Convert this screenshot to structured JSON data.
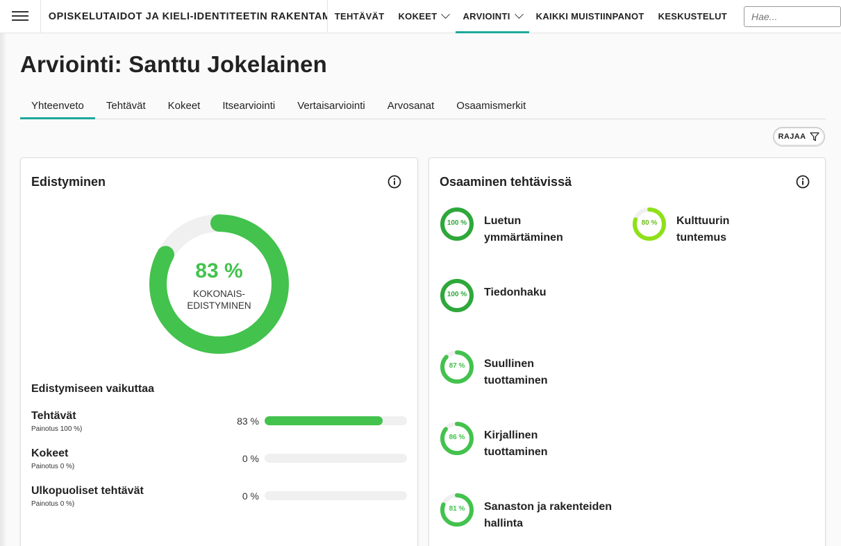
{
  "header": {
    "course_title": "OPISKELUTAIDOT JA KIELI-IDENTITEETIN RAKENTAMIN...",
    "nav": [
      {
        "label": "TEHTÄVÄT"
      },
      {
        "label": "KOKEET"
      },
      {
        "label": "ARVIOINTI"
      },
      {
        "label": "KAIKKI MUISTIINPANOT"
      },
      {
        "label": "KESKUSTELUT"
      }
    ],
    "search_placeholder": "Hae..."
  },
  "page": {
    "title": "Arviointi: Santtu Jokelainen",
    "tabs": [
      {
        "label": "Yhteenveto"
      },
      {
        "label": "Tehtävät"
      },
      {
        "label": "Kokeet"
      },
      {
        "label": "Itsearviointi"
      },
      {
        "label": "Vertaisarviointi"
      },
      {
        "label": "Arvosanat"
      },
      {
        "label": "Osaamismerkit"
      }
    ],
    "filter_label": "RAJAA"
  },
  "progress_card": {
    "title": "Edistyminen",
    "overall_percent": "83 %",
    "overall_value": 83,
    "overall_label_line1": "KOKONAIS-",
    "overall_label_line2": "EDISTYMINEN",
    "contributors_heading": "Edistymiseen vaikuttaa",
    "contributors": [
      {
        "name": "Tehtävät",
        "weight": "Painotus 100 %)",
        "value_label": "83 %",
        "value": 83
      },
      {
        "name": "Kokeet",
        "weight": "Painotus 0 %)",
        "value_label": "0 %",
        "value": 0
      },
      {
        "name": "Ulkopuoliset tehtävät",
        "weight": "Painotus 0 %)",
        "value_label": "0 %",
        "value": 0
      }
    ]
  },
  "skills_card": {
    "title": "Osaaminen tehtävissä",
    "skills": [
      {
        "name": "Luetun ymmärtäminen",
        "percent_label": "100 %",
        "value": 100,
        "color": "#2ea83a"
      },
      {
        "name": "Kulttuurin tuntemus",
        "percent_label": "80 %",
        "value": 80,
        "color": "#8fe01a"
      },
      {
        "name": "Tiedonhaku",
        "percent_label": "100 %",
        "value": 100,
        "color": "#2ea83a"
      },
      {
        "name": "Suullinen tuottaminen",
        "percent_label": "87 %",
        "value": 87,
        "color": "#43c24d"
      },
      {
        "name": "Kirjallinen tuottaminen",
        "percent_label": "86 %",
        "value": 86,
        "color": "#43c24d"
      },
      {
        "name": "Sanaston ja rakenteiden hallinta",
        "percent_label": "81 %",
        "value": 81,
        "color": "#43c24d"
      }
    ]
  },
  "colors": {
    "accent": "#1ea89b",
    "progress_green": "#43c24d",
    "track": "#f0f0f0"
  }
}
